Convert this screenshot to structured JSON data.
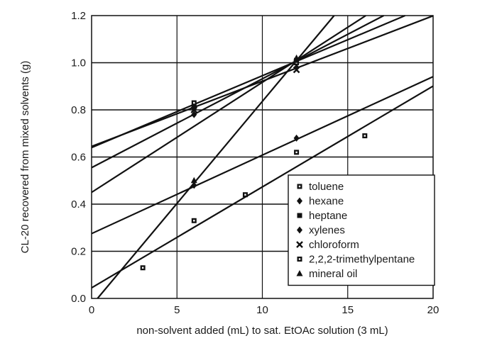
{
  "chart_data": {
    "type": "scatter",
    "xlabel": "non-solvent added (mL) to sat. EtOAc solution (3 mL)",
    "ylabel": "CL-20 recovered from mixed solvents (g)",
    "xlim": [
      0,
      20
    ],
    "ylim": [
      0,
      1.2
    ],
    "x_ticks": [
      0,
      5,
      10,
      15,
      20
    ],
    "y_ticks": [
      0.0,
      0.2,
      0.4,
      0.6,
      0.8,
      1.0,
      1.2
    ],
    "y_tick_labels": [
      "0.0",
      "0.2",
      "0.4",
      "0.6",
      "0.8",
      "1.0",
      "1.2"
    ],
    "grid": true,
    "legend_position": "lower-right",
    "series": [
      {
        "name": "toluene",
        "marker": "square-dot",
        "x": [
          6,
          12
        ],
        "y": [
          0.83,
          1.0
        ],
        "fit": {
          "intercept": 0.645,
          "slope": 0.0277
        }
      },
      {
        "name": "hexane",
        "marker": "diamond",
        "x": [
          6,
          12
        ],
        "y": [
          0.78,
          0.98
        ],
        "fit": {
          "intercept": 0.555,
          "slope": 0.0377
        }
      },
      {
        "name": "heptane",
        "marker": "square",
        "x": [
          6,
          12
        ],
        "y": [
          0.81,
          1.01
        ],
        "fit": {
          "intercept": 0.64,
          "slope": 0.0305
        }
      },
      {
        "name": "xylenes",
        "marker": "diamond",
        "x": [
          6,
          12
        ],
        "y": [
          0.48,
          0.68
        ],
        "fit": {
          "intercept": 0.275,
          "slope": 0.0333
        }
      },
      {
        "name": "chloroform",
        "marker": "cross",
        "x": [
          6,
          12
        ],
        "y": [
          0.8,
          0.97
        ],
        "fit": {
          "intercept": 0.45,
          "slope": 0.0467
        }
      },
      {
        "name": "2,2,2-trimethylpentane",
        "marker": "square-dot",
        "x": [
          3,
          6,
          9,
          12,
          16
        ],
        "y": [
          0.13,
          0.33,
          0.44,
          0.62,
          0.69
        ],
        "fit": {
          "intercept": 0.045,
          "slope": 0.0428
        }
      },
      {
        "name": "mineral oil",
        "marker": "triangle",
        "x": [
          6,
          12
        ],
        "y": [
          0.5,
          1.02
        ],
        "fit": {
          "intercept": -0.03,
          "slope": 0.0866
        }
      }
    ]
  }
}
